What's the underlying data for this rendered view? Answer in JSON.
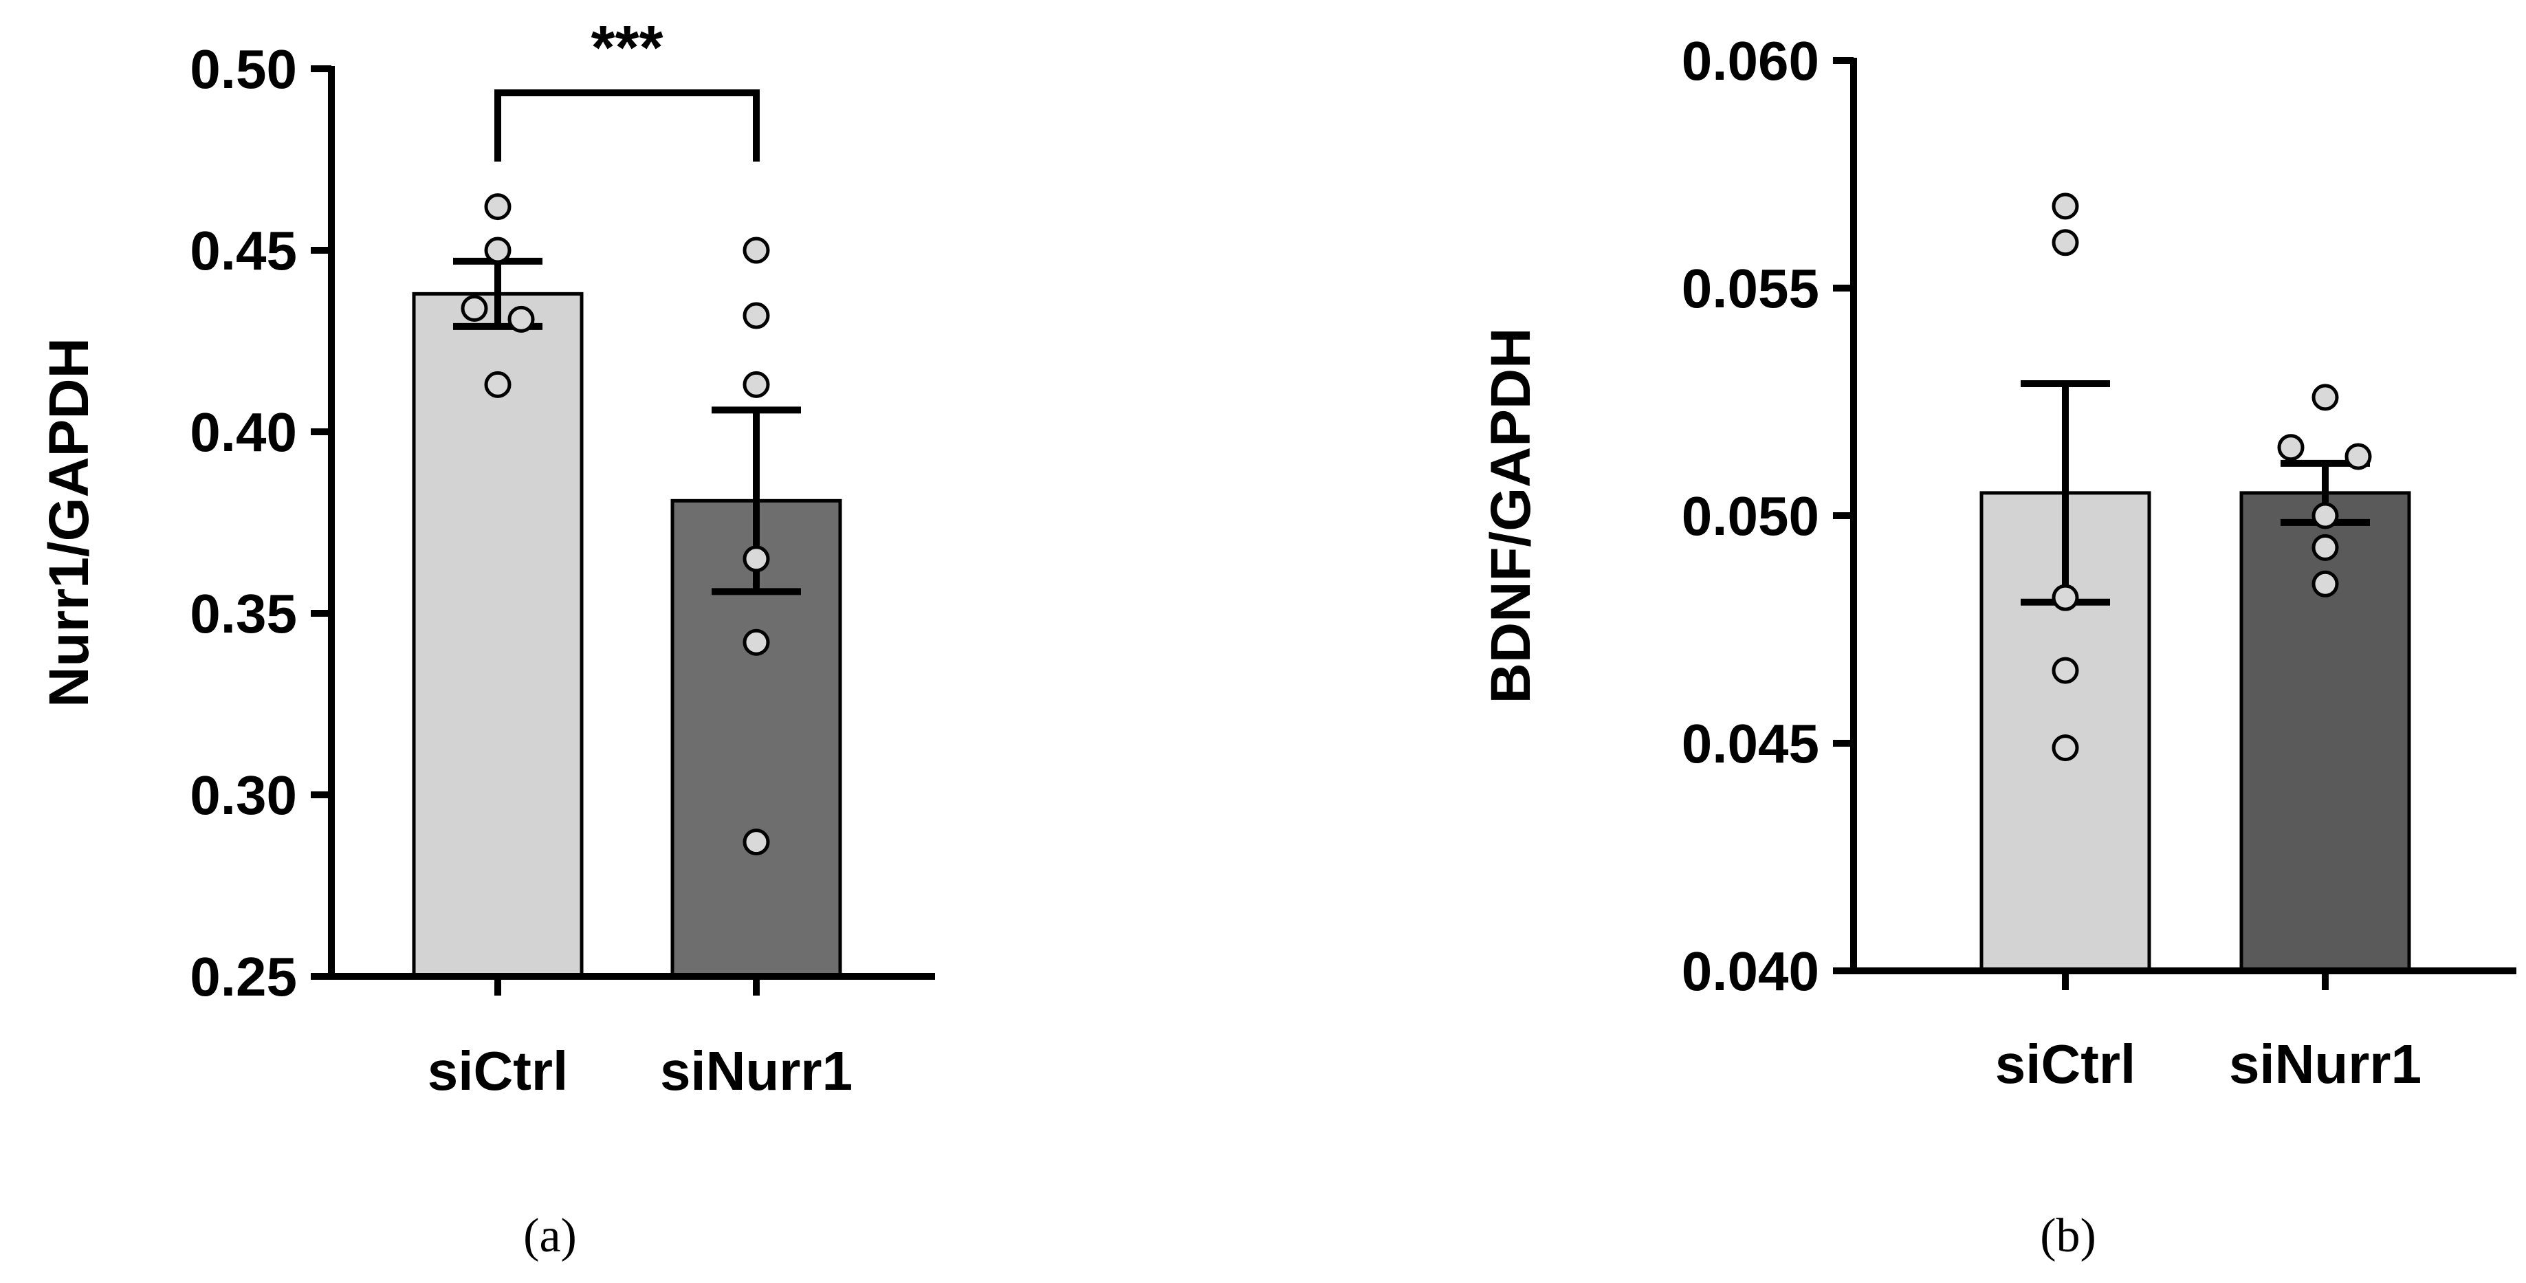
{
  "chart_data": [
    {
      "type": "bar",
      "panel_label": "(a)",
      "ylabel": "Nurr1/GAPDH",
      "ylim": [
        0.25,
        0.5
      ],
      "yticks": [
        0.25,
        0.3,
        0.35,
        0.4,
        0.45,
        0.5
      ],
      "ytick_labels": [
        "0.25",
        "0.30",
        "0.35",
        "0.40",
        "0.45",
        "0.50"
      ],
      "categories": [
        "siCtrl",
        "siNurr1"
      ],
      "values": [
        0.438,
        0.381
      ],
      "errors": [
        0.009,
        0.025
      ],
      "points": [
        [
          0.462,
          0.45,
          0.434,
          0.431,
          0.413
        ],
        [
          0.45,
          0.432,
          0.413,
          0.365,
          0.342,
          0.287
        ]
      ],
      "bar_colors": [
        "#d3d3d3",
        "#6e6e6e"
      ],
      "significance": {
        "between": [
          0,
          1
        ],
        "label": "***"
      }
    },
    {
      "type": "bar",
      "panel_label": "(b)",
      "ylabel": "BDNF/GAPDH",
      "ylim": [
        0.04,
        0.06
      ],
      "yticks": [
        0.04,
        0.045,
        0.05,
        0.055,
        0.06
      ],
      "ytick_labels": [
        "0.040",
        "0.045",
        "0.050",
        "0.055",
        "0.060"
      ],
      "categories": [
        "siCtrl",
        "siNurr1"
      ],
      "values": [
        0.0505,
        0.0505
      ],
      "errors": [
        0.0024,
        0.00065
      ],
      "points": [
        [
          0.0568,
          0.056,
          0.0482,
          0.0466,
          0.0449
        ],
        [
          0.0526,
          0.0515,
          0.0513,
          0.05,
          0.0493,
          0.0485
        ]
      ],
      "bar_colors": [
        "#d3d3d3",
        "#5a5a5a"
      ]
    }
  ]
}
